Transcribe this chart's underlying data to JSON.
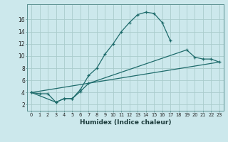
{
  "xlabel": "Humidex (Indice chaleur)",
  "bg_color": "#cce8ec",
  "grid_color": "#aacccc",
  "line_color": "#1e6b6b",
  "xlim": [
    -0.5,
    23.5
  ],
  "ylim": [
    1.0,
    18.5
  ],
  "xticks": [
    0,
    1,
    2,
    3,
    4,
    5,
    6,
    7,
    8,
    9,
    10,
    11,
    12,
    13,
    14,
    15,
    16,
    17,
    18,
    19,
    20,
    21,
    22,
    23
  ],
  "yticks": [
    2,
    4,
    6,
    8,
    10,
    12,
    14,
    16
  ],
  "line1_x": [
    0,
    1,
    2,
    3,
    4,
    5,
    6,
    7,
    8,
    9,
    10,
    11,
    12,
    13,
    14,
    15,
    16,
    17
  ],
  "line1_y": [
    4.0,
    3.8,
    3.8,
    2.4,
    3.0,
    3.0,
    4.5,
    6.8,
    8.0,
    10.3,
    12.0,
    14.0,
    15.5,
    16.8,
    17.2,
    17.0,
    15.5,
    12.5
  ],
  "line2_x": [
    0,
    3,
    4,
    5,
    6,
    7,
    19,
    20,
    21,
    22,
    23
  ],
  "line2_y": [
    4.0,
    2.4,
    3.0,
    3.0,
    4.2,
    5.5,
    11.0,
    9.8,
    9.5,
    9.5,
    9.0
  ],
  "line3_x": [
    0,
    23
  ],
  "line3_y": [
    4.0,
    9.0
  ]
}
